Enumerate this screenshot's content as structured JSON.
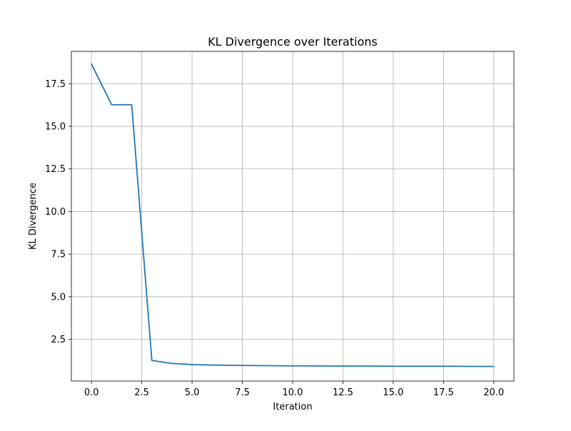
{
  "chart_data": {
    "type": "line",
    "title": "KL Divergence over Iterations",
    "xlabel": "Iteration",
    "ylabel": "KL Divergence",
    "xlim": [
      -1.0,
      21.0
    ],
    "ylim": [
      0.05,
      19.4
    ],
    "grid": true,
    "x_ticks": [
      0.0,
      2.5,
      5.0,
      7.5,
      10.0,
      12.5,
      15.0,
      17.5,
      20.0
    ],
    "x_tick_labels": [
      "0.0",
      "2.5",
      "5.0",
      "7.5",
      "10.0",
      "12.5",
      "15.0",
      "17.5",
      "20.0"
    ],
    "y_ticks": [
      2.5,
      5.0,
      7.5,
      10.0,
      12.5,
      15.0,
      17.5
    ],
    "y_tick_labels": [
      "2.5",
      "5.0",
      "7.5",
      "10.0",
      "12.5",
      "15.0",
      "17.5"
    ],
    "series": [
      {
        "color": "#1f77b4",
        "x": [
          0,
          1,
          2,
          3,
          4,
          5,
          6,
          7,
          8,
          9,
          10,
          11,
          12,
          13,
          14,
          15,
          16,
          17,
          18,
          19,
          20
        ],
        "y": [
          18.66,
          16.27,
          16.27,
          1.26,
          1.08,
          1.02,
          0.99,
          0.97,
          0.96,
          0.95,
          0.94,
          0.94,
          0.93,
          0.93,
          0.93,
          0.92,
          0.92,
          0.92,
          0.92,
          0.91,
          0.91
        ]
      }
    ]
  }
}
